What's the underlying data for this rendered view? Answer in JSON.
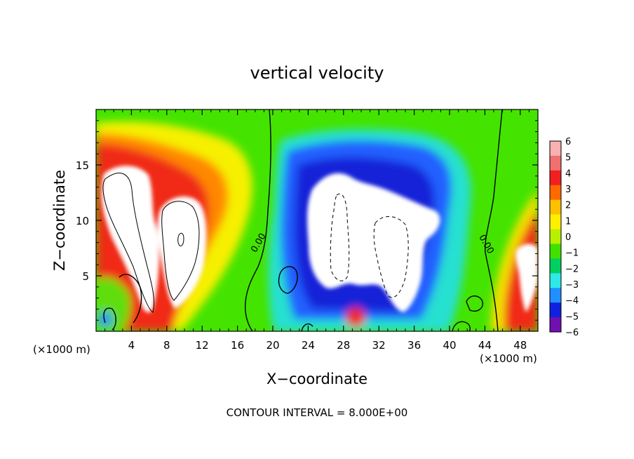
{
  "chart_data": {
    "type": "heatmap",
    "title": "vertical velocity",
    "xlabel": "X−coordinate",
    "ylabel": "Z−coordinate",
    "x_unit_left": "(×1000 m)",
    "x_unit_right": "(×1000 m)",
    "footer": "CONTOUR INTERVAL = 8.000E+00",
    "xlim": [
      0,
      50
    ],
    "ylim": [
      0,
      20
    ],
    "x_ticks": [
      4,
      8,
      12,
      16,
      20,
      24,
      28,
      32,
      36,
      40,
      44,
      48
    ],
    "x_tick_labels": [
      "4",
      "8",
      "12",
      "16",
      "20",
      "24",
      "28",
      "32",
      "36",
      "40",
      "44",
      "48"
    ],
    "y_ticks": [
      5,
      10,
      15
    ],
    "y_tick_labels": [
      "5",
      "10",
      "15"
    ],
    "colorbar": {
      "labels": [
        "6",
        "5",
        "4",
        "3",
        "2",
        "1",
        "0",
        "−1",
        "−2",
        "−3",
        "−4",
        "−5",
        "−6"
      ],
      "range": [
        -6,
        6
      ],
      "colors": [
        "#f8b0b0",
        "#f07070",
        "#f02020",
        "#ff6a00",
        "#ffc000",
        "#fff000",
        "#b8f000",
        "#40e000",
        "#00d060",
        "#30e8e8",
        "#2090ff",
        "#1020e0",
        "#7010b0"
      ]
    },
    "contour_labels": [
      "0.00",
      "0.00"
    ],
    "notes_values": {
      "updraft_peaks_x": [
        5,
        10,
        49
      ],
      "downdraft_core_x": [
        28,
        36
      ],
      "zero_contour_x": [
        19.5,
        44.5
      ]
    }
  }
}
